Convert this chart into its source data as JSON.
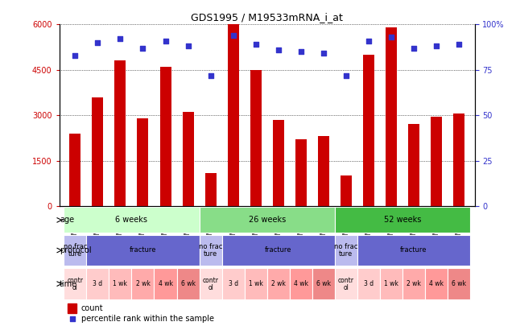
{
  "title": "GDS1995 / M19533mRNA_i_at",
  "samples": [
    "GSM22165",
    "GSM22166",
    "GSM22263",
    "GSM22264",
    "GSM22265",
    "GSM22266",
    "GSM22267",
    "GSM22268",
    "GSM22269",
    "GSM22270",
    "GSM22271",
    "GSM22272",
    "GSM22273",
    "GSM22274",
    "GSM22276",
    "GSM22277",
    "GSM22279",
    "GSM22280"
  ],
  "counts": [
    2400,
    3600,
    4800,
    2900,
    4600,
    3100,
    1100,
    6000,
    4500,
    2850,
    2200,
    2300,
    1000,
    5000,
    5900,
    2700,
    2950,
    3050
  ],
  "percentiles": [
    83,
    90,
    92,
    87,
    91,
    88,
    72,
    94,
    89,
    86,
    85,
    84,
    72,
    91,
    93,
    87,
    88,
    89
  ],
  "ylim_left": [
    0,
    6000
  ],
  "ylim_right": [
    0,
    100
  ],
  "yticks_left": [
    0,
    1500,
    3000,
    4500,
    6000
  ],
  "ytick_labels_left": [
    "0",
    "1500",
    "3000",
    "4500",
    "6000"
  ],
  "yticks_right": [
    0,
    25,
    50,
    75,
    100
  ],
  "ytick_labels_right": [
    "0",
    "25",
    "50",
    "75",
    "100%"
  ],
  "bar_color": "#cc0000",
  "dot_color": "#3333cc",
  "age_groups": [
    {
      "label": "6 weeks",
      "start": 0,
      "end": 6,
      "color": "#ccffcc"
    },
    {
      "label": "26 weeks",
      "start": 6,
      "end": 12,
      "color": "#88dd88"
    },
    {
      "label": "52 weeks",
      "start": 12,
      "end": 18,
      "color": "#44bb44"
    }
  ],
  "protocol_groups": [
    {
      "label": "no frac\nture",
      "start": 0,
      "end": 1,
      "color": "#bbbbee"
    },
    {
      "label": "fracture",
      "start": 1,
      "end": 6,
      "color": "#6666cc"
    },
    {
      "label": "no frac\nture",
      "start": 6,
      "end": 7,
      "color": "#bbbbee"
    },
    {
      "label": "fracture",
      "start": 7,
      "end": 12,
      "color": "#6666cc"
    },
    {
      "label": "no frac\nture",
      "start": 12,
      "end": 13,
      "color": "#bbbbee"
    },
    {
      "label": "fracture",
      "start": 13,
      "end": 18,
      "color": "#6666cc"
    }
  ],
  "time_groups": [
    {
      "label": "contr\nol",
      "start": 0,
      "end": 1,
      "color": "#ffdddd"
    },
    {
      "label": "3 d",
      "start": 1,
      "end": 2,
      "color": "#ffcccc"
    },
    {
      "label": "1 wk",
      "start": 2,
      "end": 3,
      "color": "#ffbbbb"
    },
    {
      "label": "2 wk",
      "start": 3,
      "end": 4,
      "color": "#ffaaaa"
    },
    {
      "label": "4 wk",
      "start": 4,
      "end": 5,
      "color": "#ff9999"
    },
    {
      "label": "6 wk",
      "start": 5,
      "end": 6,
      "color": "#ee8888"
    },
    {
      "label": "contr\nol",
      "start": 6,
      "end": 7,
      "color": "#ffdddd"
    },
    {
      "label": "3 d",
      "start": 7,
      "end": 8,
      "color": "#ffcccc"
    },
    {
      "label": "1 wk",
      "start": 8,
      "end": 9,
      "color": "#ffbbbb"
    },
    {
      "label": "2 wk",
      "start": 9,
      "end": 10,
      "color": "#ffaaaa"
    },
    {
      "label": "4 wk",
      "start": 10,
      "end": 11,
      "color": "#ff9999"
    },
    {
      "label": "6 wk",
      "start": 11,
      "end": 12,
      "color": "#ee8888"
    },
    {
      "label": "contr\nol",
      "start": 12,
      "end": 13,
      "color": "#ffdddd"
    },
    {
      "label": "3 d",
      "start": 13,
      "end": 14,
      "color": "#ffcccc"
    },
    {
      "label": "1 wk",
      "start": 14,
      "end": 15,
      "color": "#ffbbbb"
    },
    {
      "label": "2 wk",
      "start": 15,
      "end": 16,
      "color": "#ffaaaa"
    },
    {
      "label": "4 wk",
      "start": 16,
      "end": 17,
      "color": "#ff9999"
    },
    {
      "label": "6 wk",
      "start": 17,
      "end": 18,
      "color": "#ee8888"
    }
  ],
  "label_age": "age",
  "label_protocol": "protocol",
  "label_time": "time",
  "legend_count": "count",
  "legend_pct": "percentile rank within the sample",
  "bg_color": "#ffffff",
  "tick_color_left": "#cc0000",
  "tick_color_right": "#3333cc"
}
